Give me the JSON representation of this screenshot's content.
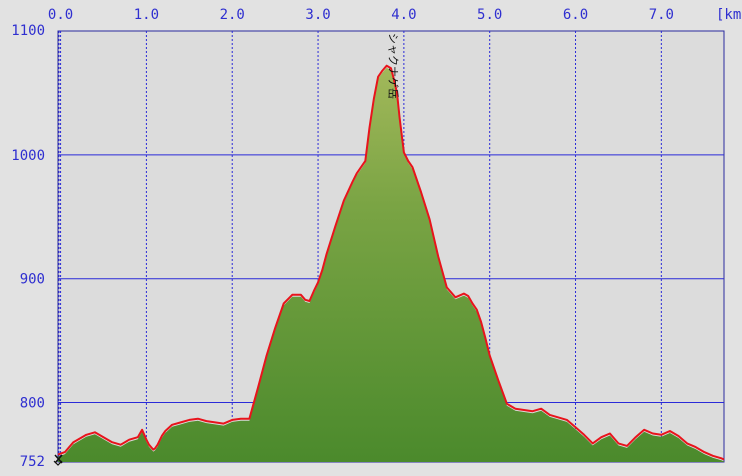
{
  "chart_data": {
    "type": "area",
    "x_unit_label": "[km",
    "x_ticks": [
      0.0,
      1.0,
      2.0,
      3.0,
      4.0,
      5.0,
      6.0,
      7.0
    ],
    "x_tick_labels": [
      "0.0",
      "1.0",
      "2.0",
      "3.0",
      "4.0",
      "5.0",
      "6.0",
      "7.0"
    ],
    "y_ticks": [
      752,
      800,
      900,
      1000,
      1100
    ],
    "y_tick_labels": [
      "752",
      "800",
      "900",
      "1000",
      "1100"
    ],
    "xlim": [
      -0.03,
      7.73
    ],
    "ylim": [
      752,
      1100
    ],
    "grid": true,
    "annotation": {
      "text": "シャクナゲ岳",
      "x": 3.88
    },
    "series": [
      {
        "role": "elevation-profile-outline",
        "color": "#e8141c",
        "x": [
          -0.03,
          0.05,
          0.15,
          0.2,
          0.3,
          0.4,
          0.5,
          0.6,
          0.7,
          0.8,
          0.9,
          0.95,
          1.0,
          1.03,
          1.08,
          1.1,
          1.13,
          1.18,
          1.22,
          1.3,
          1.4,
          1.5,
          1.6,
          1.7,
          1.8,
          1.9,
          2.0,
          2.1,
          2.2,
          2.3,
          2.4,
          2.5,
          2.6,
          2.7,
          2.8,
          2.85,
          2.9,
          2.95,
          3.0,
          3.05,
          3.1,
          3.2,
          3.3,
          3.4,
          3.45,
          3.5,
          3.55,
          3.6,
          3.65,
          3.7,
          3.75,
          3.8,
          3.85,
          3.88,
          3.92,
          3.95,
          4.0,
          4.05,
          4.1,
          4.2,
          4.3,
          4.4,
          4.5,
          4.6,
          4.7,
          4.75,
          4.8,
          4.85,
          4.9,
          4.95,
          5.0,
          5.1,
          5.2,
          5.3,
          5.4,
          5.5,
          5.6,
          5.7,
          5.8,
          5.9,
          6.0,
          6.1,
          6.2,
          6.3,
          6.4,
          6.5,
          6.6,
          6.7,
          6.8,
          6.9,
          7.0,
          7.1,
          7.2,
          7.3,
          7.4,
          7.5,
          7.6,
          7.7,
          7.73
        ],
        "values": [
          758,
          760,
          768,
          770,
          774,
          776,
          772,
          768,
          766,
          770,
          772,
          778,
          770,
          766,
          762,
          763,
          766,
          773,
          777,
          782,
          784,
          786,
          787,
          785,
          784,
          783,
          786,
          787,
          787,
          812,
          838,
          860,
          880,
          887,
          887,
          883,
          882,
          890,
          897,
          907,
          920,
          942,
          963,
          978,
          985,
          990,
          995,
          1022,
          1045,
          1063,
          1068,
          1072,
          1070,
          1062,
          1050,
          1030,
          1002,
          995,
          990,
          970,
          948,
          918,
          893,
          885,
          888,
          886,
          880,
          875,
          865,
          852,
          838,
          818,
          799,
          795,
          794,
          793,
          795,
          790,
          788,
          786,
          780,
          774,
          767,
          772,
          775,
          767,
          765,
          772,
          778,
          775,
          774,
          777,
          773,
          767,
          764,
          760,
          757,
          755,
          754
        ]
      }
    ]
  }
}
